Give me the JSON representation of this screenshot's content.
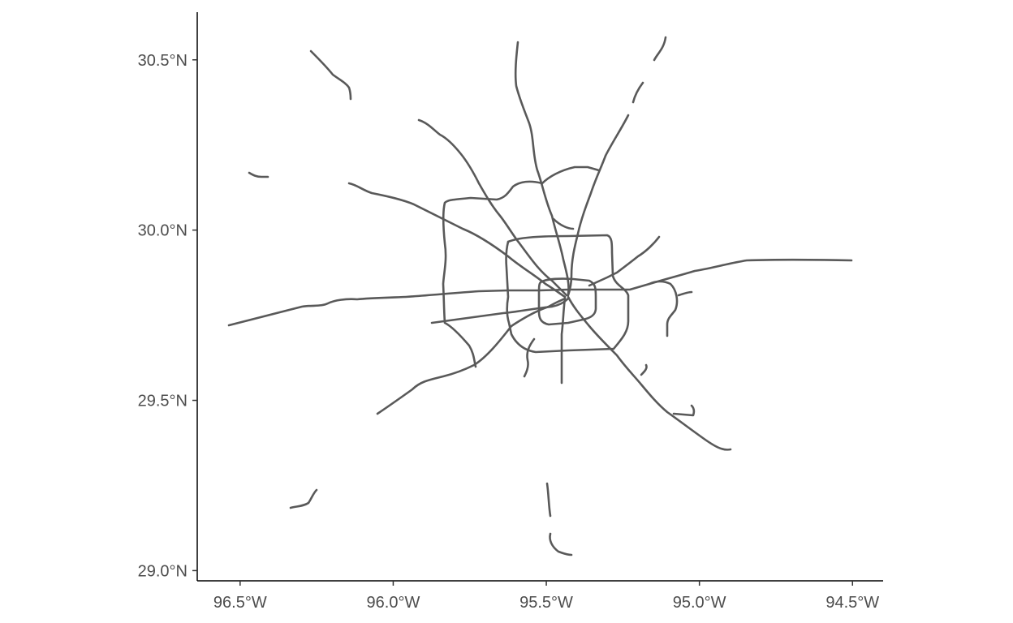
{
  "map": {
    "x_axis": {
      "ticks": [
        {
          "value": -96.5,
          "label": "96.5°W"
        },
        {
          "value": -96.0,
          "label": "96.0°W"
        },
        {
          "value": -95.5,
          "label": "95.5°W"
        },
        {
          "value": -95.0,
          "label": "95.0°W"
        },
        {
          "value": -94.5,
          "label": "94.5°W"
        }
      ],
      "range": [
        -96.64,
        -94.4
      ]
    },
    "y_axis": {
      "ticks": [
        {
          "value": 29.0,
          "label": "29.0°N"
        },
        {
          "value": 29.5,
          "label": "29.5°N"
        },
        {
          "value": 30.0,
          "label": "30.0°N"
        },
        {
          "value": 30.5,
          "label": "30.5°N"
        }
      ],
      "range": [
        28.97,
        30.64
      ]
    },
    "road_color": "#595959"
  }
}
